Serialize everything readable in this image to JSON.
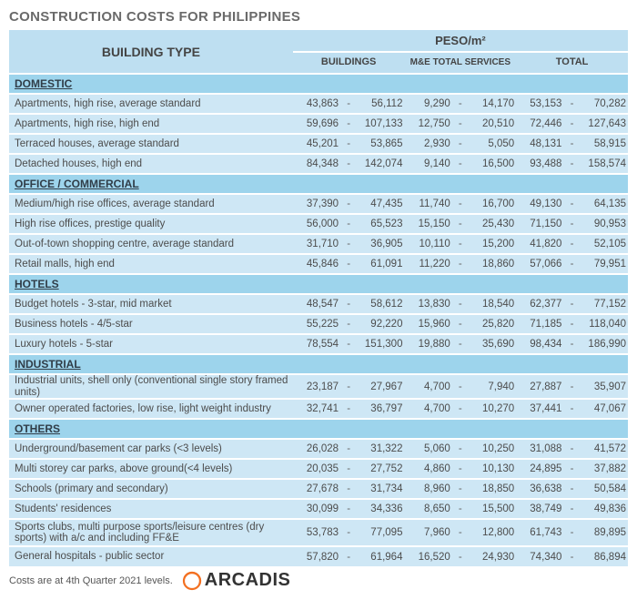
{
  "title": "CONSTRUCTION COSTS FOR PHILIPPINES",
  "header": {
    "building_type": "BUILDING TYPE",
    "super": "PESO/m²",
    "cols": [
      "BUILDINGS",
      "M&E TOTAL SERVICES",
      "TOTAL"
    ]
  },
  "colors": {
    "header_bg": "#bedff1",
    "cat_bg": "#9dd4ec",
    "row_bg": "#cee7f5",
    "gap": "#ffffff"
  },
  "categories": [
    {
      "name": "DOMESTIC",
      "rows": [
        {
          "label": "Apartments, high rise, average standard",
          "b": [
            "43,863",
            "56,112"
          ],
          "m": [
            "9,290",
            "14,170"
          ],
          "t": [
            "53,153",
            "70,282"
          ]
        },
        {
          "label": "Apartments, high rise, high end",
          "b": [
            "59,696",
            "107,133"
          ],
          "m": [
            "12,750",
            "20,510"
          ],
          "t": [
            "72,446",
            "127,643"
          ]
        },
        {
          "label": "Terraced houses, average standard",
          "b": [
            "45,201",
            "53,865"
          ],
          "m": [
            "2,930",
            "5,050"
          ],
          "t": [
            "48,131",
            "58,915"
          ]
        },
        {
          "label": "Detached houses, high end",
          "b": [
            "84,348",
            "142,074"
          ],
          "m": [
            "9,140",
            "16,500"
          ],
          "t": [
            "93,488",
            "158,574"
          ]
        }
      ]
    },
    {
      "name": "OFFICE / COMMERCIAL",
      "rows": [
        {
          "label": "Medium/high rise offices, average standard",
          "b": [
            "37,390",
            "47,435"
          ],
          "m": [
            "11,740",
            "16,700"
          ],
          "t": [
            "49,130",
            "64,135"
          ]
        },
        {
          "label": "High rise offices, prestige quality",
          "b": [
            "56,000",
            "65,523"
          ],
          "m": [
            "15,150",
            "25,430"
          ],
          "t": [
            "71,150",
            "90,953"
          ]
        },
        {
          "label": "Out-of-town shopping centre, average standard",
          "b": [
            "31,710",
            "36,905"
          ],
          "m": [
            "10,110",
            "15,200"
          ],
          "t": [
            "41,820",
            "52,105"
          ]
        },
        {
          "label": "Retail malls, high end",
          "b": [
            "45,846",
            "61,091"
          ],
          "m": [
            "11,220",
            "18,860"
          ],
          "t": [
            "57,066",
            "79,951"
          ]
        }
      ]
    },
    {
      "name": "HOTELS",
      "rows": [
        {
          "label": "Budget hotels - 3-star, mid market",
          "b": [
            "48,547",
            "58,612"
          ],
          "m": [
            "13,830",
            "18,540"
          ],
          "t": [
            "62,377",
            "77,152"
          ]
        },
        {
          "label": "Business hotels - 4/5-star",
          "b": [
            "55,225",
            "92,220"
          ],
          "m": [
            "15,960",
            "25,820"
          ],
          "t": [
            "71,185",
            "118,040"
          ]
        },
        {
          "label": "Luxury hotels - 5-star",
          "b": [
            "78,554",
            "151,300"
          ],
          "m": [
            "19,880",
            "35,690"
          ],
          "t": [
            "98,434",
            "186,990"
          ]
        }
      ]
    },
    {
      "name": "INDUSTRIAL",
      "rows": [
        {
          "label": "Industrial units, shell only (conventional single story framed units)",
          "b": [
            "23,187",
            "27,967"
          ],
          "m": [
            "4,700",
            "7,940"
          ],
          "t": [
            "27,887",
            "35,907"
          ]
        },
        {
          "label": "Owner operated factories, low rise, light weight industry",
          "b": [
            "32,741",
            "36,797"
          ],
          "m": [
            "4,700",
            "10,270"
          ],
          "t": [
            "37,441",
            "47,067"
          ]
        }
      ]
    },
    {
      "name": "OTHERS",
      "rows": [
        {
          "label": "Underground/basement car parks (<3 levels)",
          "b": [
            "26,028",
            "31,322"
          ],
          "m": [
            "5,060",
            "10,250"
          ],
          "t": [
            "31,088",
            "41,572"
          ]
        },
        {
          "label": "Multi storey car parks, above ground(<4 levels)",
          "b": [
            "20,035",
            "27,752"
          ],
          "m": [
            "4,860",
            "10,130"
          ],
          "t": [
            "24,895",
            "37,882"
          ]
        },
        {
          "label": "Schools (primary and secondary)",
          "b": [
            "27,678",
            "31,734"
          ],
          "m": [
            "8,960",
            "18,850"
          ],
          "t": [
            "36,638",
            "50,584"
          ]
        },
        {
          "label": "Students' residences",
          "b": [
            "30,099",
            "34,336"
          ],
          "m": [
            "8,650",
            "15,500"
          ],
          "t": [
            "38,749",
            "49,836"
          ]
        },
        {
          "label": "Sports clubs, multi purpose sports/leisure centres (dry sports) with a/c and including FF&E",
          "tall": true,
          "b": [
            "53,783",
            "77,095"
          ],
          "m": [
            "7,960",
            "12,800"
          ],
          "t": [
            "61,743",
            "89,895"
          ]
        },
        {
          "label": "General hospitals - public sector",
          "b": [
            "57,820",
            "61,964"
          ],
          "m": [
            "16,520",
            "24,930"
          ],
          "t": [
            "74,340",
            "86,894"
          ]
        }
      ]
    }
  ],
  "footer": {
    "note": "Costs are at 4th Quarter 2021 levels.",
    "brand": "ARCADIS",
    "brand_color": "#f37021"
  }
}
